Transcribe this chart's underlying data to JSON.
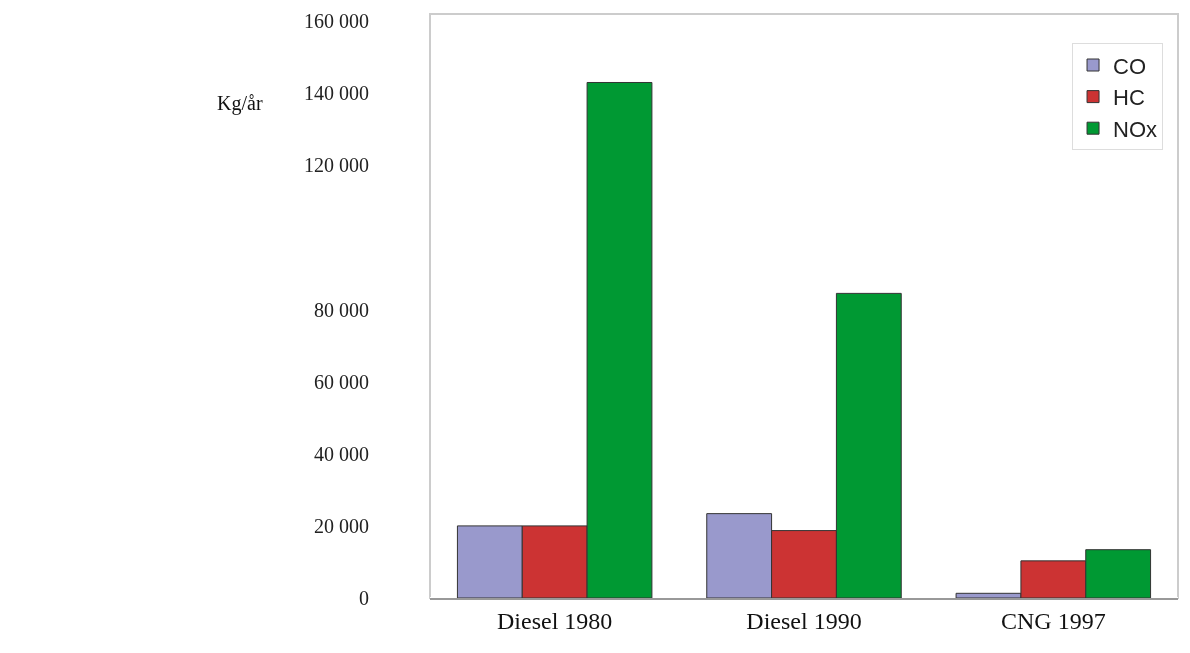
{
  "chart_data": {
    "type": "bar",
    "ylabel": "Kg/år",
    "categories": [
      "Diesel 1980",
      "Diesel 1990",
      "CNG 1997"
    ],
    "series": [
      {
        "name": "CO",
        "color": "#9999cc",
        "values": [
          20000,
          23400,
          1300
        ]
      },
      {
        "name": "HC",
        "color": "#cc3333",
        "values": [
          20000,
          18700,
          10300
        ]
      },
      {
        "name": "NOx",
        "color": "#009933",
        "values": [
          143000,
          84500,
          13400
        ]
      }
    ],
    "ylim": [
      0,
      162000
    ],
    "yticks": [
      {
        "value": 0,
        "label": "0"
      },
      {
        "value": 20000,
        "label": "20 000"
      },
      {
        "value": 40000,
        "label": "40 000"
      },
      {
        "value": 60000,
        "label": "60 000"
      },
      {
        "value": 80000,
        "label": "80 000"
      },
      {
        "value": 120000,
        "label": "120 000"
      },
      {
        "value": 140000,
        "label": "140 000"
      },
      {
        "value": 160000,
        "label": "160 000"
      }
    ],
    "grid": false,
    "legend": "top right"
  }
}
